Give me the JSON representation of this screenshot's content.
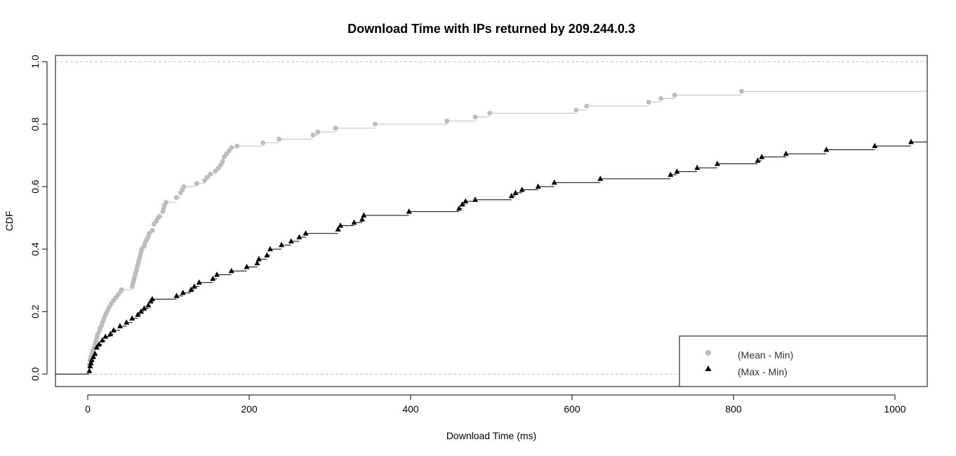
{
  "chart_data": {
    "type": "line",
    "step": true,
    "title": "Download Time with IPs returned by 209.244.0.3",
    "xlabel": "Download Time (ms)",
    "ylabel": "CDF",
    "xlim": [
      -40,
      1040
    ],
    "ylim": [
      -0.04,
      1.02
    ],
    "xticks": [
      0,
      200,
      400,
      600,
      800,
      1000
    ],
    "yticks": [
      0.0,
      0.2,
      0.4,
      0.6,
      0.8,
      1.0
    ],
    "xtick_labels": [
      "0",
      "200",
      "400",
      "600",
      "800",
      "1000"
    ],
    "ytick_labels": [
      "0.0",
      "0.2",
      "0.4",
      "0.6",
      "0.8",
      "1.0"
    ],
    "reference_lines": [
      0,
      1
    ],
    "legend_position": "bottom-right",
    "series": [
      {
        "name": "(Mean - Min)",
        "color": "#bdbdbd",
        "marker": "circle",
        "x": [
          2,
          3,
          4,
          5,
          6,
          8,
          9,
          10,
          11,
          12,
          14,
          15,
          17,
          18,
          20,
          21,
          23,
          25,
          27,
          29,
          32,
          35,
          38,
          41,
          42,
          55,
          56,
          57,
          58,
          59,
          60,
          61,
          62,
          63,
          64,
          65,
          66,
          67,
          70,
          71,
          73,
          75,
          76,
          80,
          82,
          85,
          87,
          89,
          93,
          94,
          95,
          97,
          110,
          115,
          117,
          119,
          135,
          145,
          148,
          152,
          158,
          162,
          165,
          167,
          169,
          172,
          175,
          178,
          185,
          217,
          237,
          279,
          285,
          307,
          356,
          445,
          480,
          498,
          605,
          618,
          695,
          710,
          727,
          810
        ],
        "y": [
          0.03,
          0.045,
          0.055,
          0.065,
          0.075,
          0.085,
          0.095,
          0.105,
          0.115,
          0.125,
          0.135,
          0.145,
          0.155,
          0.165,
          0.175,
          0.185,
          0.195,
          0.205,
          0.215,
          0.225,
          0.235,
          0.245,
          0.255,
          0.265,
          0.27,
          0.28,
          0.29,
          0.3,
          0.31,
          0.32,
          0.33,
          0.34,
          0.35,
          0.36,
          0.37,
          0.38,
          0.39,
          0.4,
          0.41,
          0.42,
          0.43,
          0.44,
          0.45,
          0.46,
          0.48,
          0.49,
          0.5,
          0.505,
          0.52,
          0.53,
          0.54,
          0.55,
          0.565,
          0.58,
          0.59,
          0.6,
          0.61,
          0.62,
          0.63,
          0.64,
          0.65,
          0.66,
          0.67,
          0.68,
          0.695,
          0.705,
          0.715,
          0.725,
          0.73,
          0.74,
          0.752,
          0.765,
          0.775,
          0.787,
          0.8,
          0.81,
          0.823,
          0.835,
          0.845,
          0.858,
          0.87,
          0.882,
          0.893,
          0.905
        ]
      },
      {
        "name": "(Max - Min)",
        "color": "#000000",
        "marker": "triangle",
        "x": [
          2,
          3,
          4,
          5,
          7,
          9,
          11,
          14,
          18,
          22,
          28,
          32,
          40,
          48,
          55,
          62,
          66,
          70,
          75,
          78,
          80,
          110,
          118,
          128,
          132,
          138,
          155,
          160,
          178,
          197,
          210,
          212,
          222,
          226,
          240,
          252,
          262,
          270,
          310,
          313,
          330,
          340,
          342,
          398,
          460,
          464,
          468,
          480,
          525,
          530,
          538,
          558,
          578,
          635,
          722,
          730,
          755,
          780,
          830,
          835,
          865,
          915,
          975,
          1020
        ],
        "y": [
          0.01,
          0.025,
          0.035,
          0.045,
          0.055,
          0.065,
          0.085,
          0.095,
          0.108,
          0.12,
          0.128,
          0.14,
          0.153,
          0.165,
          0.178,
          0.19,
          0.2,
          0.21,
          0.22,
          0.233,
          0.24,
          0.25,
          0.26,
          0.27,
          0.28,
          0.293,
          0.305,
          0.318,
          0.33,
          0.343,
          0.355,
          0.368,
          0.38,
          0.4,
          0.413,
          0.425,
          0.438,
          0.45,
          0.463,
          0.475,
          0.485,
          0.495,
          0.508,
          0.52,
          0.53,
          0.543,
          0.553,
          0.558,
          0.57,
          0.58,
          0.59,
          0.6,
          0.613,
          0.625,
          0.638,
          0.648,
          0.66,
          0.673,
          0.683,
          0.695,
          0.705,
          0.718,
          0.73,
          0.743
        ]
      }
    ]
  }
}
